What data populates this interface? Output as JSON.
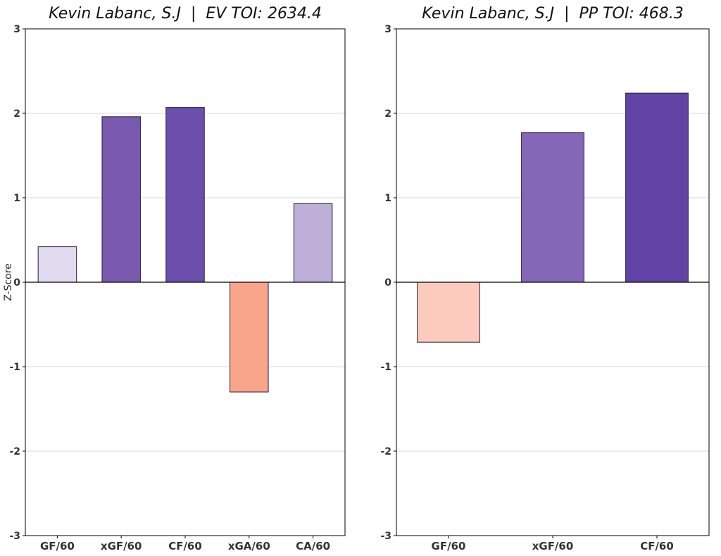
{
  "chart_data": [
    {
      "type": "bar",
      "title": "Kevin Labanc, S.J  |  EV TOI: 2634.4",
      "ylabel": "Z-Score",
      "xlabel": "",
      "ylim": [
        -3,
        3
      ],
      "yticks": [
        -3,
        -2,
        -1,
        0,
        1,
        2,
        3
      ],
      "grid": "horizontal",
      "categories": [
        "GF/60",
        "xGF/60",
        "CF/60",
        "xGA/60",
        "CA/60"
      ],
      "values": [
        0.42,
        1.96,
        2.07,
        -1.3,
        0.93
      ],
      "colors": [
        "#e2daee",
        "#7a59b0",
        "#6c4fac",
        "#f9a58c",
        "#beafd8"
      ]
    },
    {
      "type": "bar",
      "title": "Kevin Labanc, S.J  |  PP TOI: 468.3",
      "ylabel": "",
      "xlabel": "",
      "ylim": [
        -3,
        3
      ],
      "yticks": [
        -3,
        -2,
        -1,
        0,
        1,
        2,
        3
      ],
      "grid": "horizontal",
      "categories": [
        "GF/60",
        "xGF/60",
        "CF/60"
      ],
      "values": [
        -0.71,
        1.77,
        2.24
      ],
      "colors": [
        "#fdcbbd",
        "#8567b8",
        "#6244a6"
      ]
    }
  ]
}
